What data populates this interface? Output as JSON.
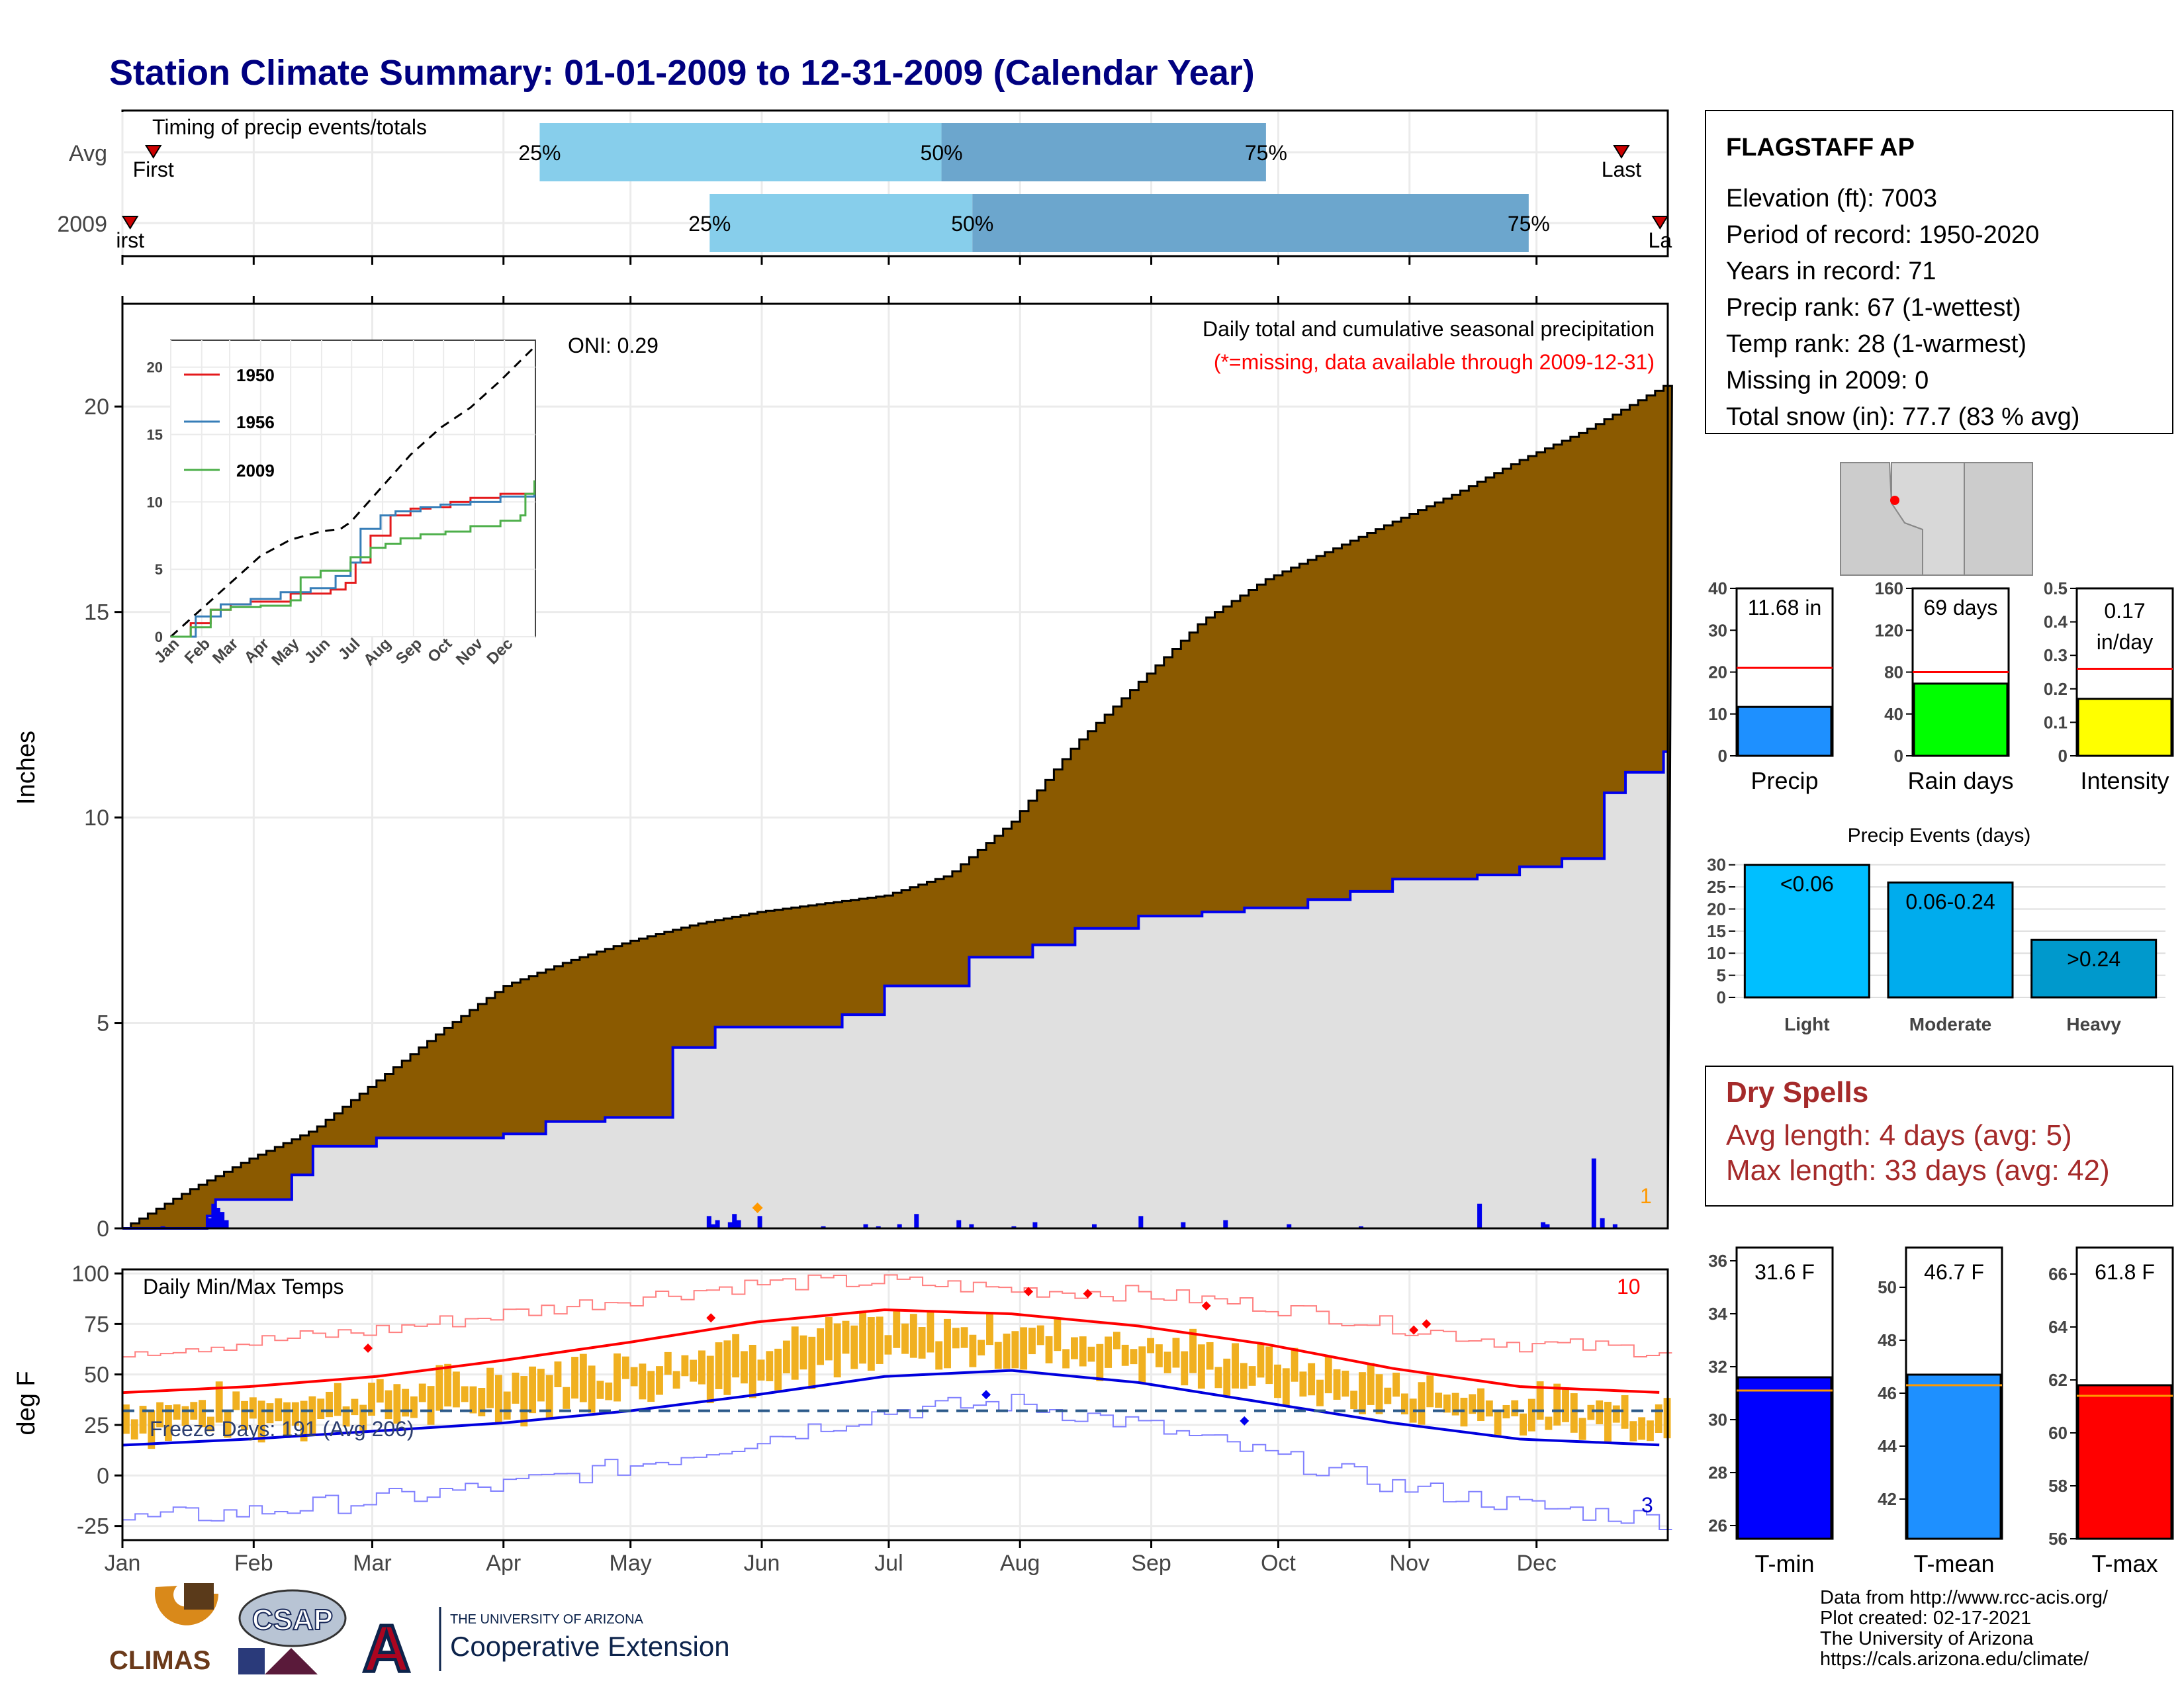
{
  "title": "Station Climate Summary: 01-01-2009 to 12-31-2009 (Calendar Year)",
  "months": [
    "Jan",
    "Feb",
    "Mar",
    "Apr",
    "May",
    "Jun",
    "Jul",
    "Aug",
    "Sep",
    "Oct",
    "Nov",
    "Dec"
  ],
  "timing": {
    "label": "Timing of precip events/totals",
    "rows": [
      {
        "name": "Avg",
        "q25": 0.27,
        "q50": 0.53,
        "q75": 0.74,
        "first": 0.02,
        "last": 0.97,
        "first_label": "First",
        "last_label": "Last"
      },
      {
        "name": "2009",
        "q25": 0.38,
        "q50": 0.55,
        "q75": 0.91,
        "first": 0.005,
        "last": 0.995,
        "first_label": "irst",
        "last_label": "La"
      }
    ],
    "pct_labels": [
      "25%",
      "50%",
      "75%"
    ],
    "colors": {
      "light": "#87ceeb",
      "dark": "#6ca6cd",
      "marker": "#cc0000"
    }
  },
  "precip": {
    "ylabel": "Inches",
    "y_ticks": [
      0,
      5,
      10,
      15,
      20
    ],
    "ylim": [
      0,
      22.5
    ],
    "oni": "ONI: 0.29",
    "note1": "Daily total and cumulative seasonal precipitation",
    "note2": "(*=missing, data available through 2009-12-31)",
    "count_label": "1",
    "colors": {
      "avg_fill": "#8b5a00",
      "year_fill": "#e0e0e0",
      "year_line": "#0000ee"
    },
    "chart_data": {
      "type": "area",
      "x_unit": "day of year",
      "avg_cumulative": {
        "x": [
          0,
          15,
          30,
          45,
          60,
          75,
          90,
          105,
          120,
          135,
          150,
          165,
          180,
          195,
          210,
          225,
          240,
          255,
          270,
          285,
          300,
          315,
          330,
          345,
          364
        ],
        "y": [
          0,
          0.9,
          1.7,
          2.4,
          3.6,
          4.8,
          5.9,
          6.5,
          7.0,
          7.4,
          7.7,
          7.9,
          8.1,
          8.6,
          9.9,
          11.8,
          13.3,
          14.8,
          15.8,
          16.5,
          17.2,
          17.9,
          18.7,
          19.4,
          20.5
        ]
      },
      "year_cumulative": {
        "x": [
          0,
          20,
          22,
          38,
          40,
          45,
          60,
          75,
          90,
          100,
          114,
          125,
          130,
          140,
          145,
          155,
          170,
          180,
          190,
          200,
          215,
          225,
          240,
          255,
          265,
          280,
          290,
          300,
          320,
          330,
          340,
          350,
          355,
          364
        ],
        "y": [
          0,
          0.3,
          0.7,
          0.7,
          1.3,
          2.0,
          2.2,
          2.2,
          2.3,
          2.6,
          2.7,
          2.7,
          4.4,
          4.9,
          4.9,
          4.9,
          5.2,
          5.9,
          5.9,
          6.6,
          6.9,
          7.3,
          7.6,
          7.7,
          7.8,
          8.0,
          8.2,
          8.5,
          8.6,
          8.8,
          9.0,
          10.6,
          11.1,
          11.6
        ]
      },
      "daily_bars": {
        "x": [
          9,
          20,
          21,
          22,
          23,
          24,
          138,
          139,
          140,
          143,
          144,
          145,
          150,
          165,
          175,
          178,
          183,
          187,
          197,
          200,
          210,
          215,
          229,
          240,
          250,
          260,
          275,
          292,
          320,
          335,
          336,
          347,
          349,
          352
        ],
        "y": [
          0.05,
          0.25,
          0.6,
          0.5,
          0.4,
          0.2,
          0.3,
          0.1,
          0.2,
          0.15,
          0.35,
          0.2,
          0.3,
          0.05,
          0.1,
          0.05,
          0.1,
          0.35,
          0.2,
          0.1,
          0.05,
          0.15,
          0.1,
          0.3,
          0.15,
          0.2,
          0.1,
          0.05,
          0.6,
          0.15,
          0.1,
          1.7,
          0.25,
          0.1
        ]
      }
    }
  },
  "inset": {
    "y_ticks": [
      0,
      5,
      10,
      15,
      20
    ],
    "legend": [
      {
        "name": "1950",
        "color": "#e41a1c"
      },
      {
        "name": "1956",
        "color": "#377eb8"
      },
      {
        "name": "2009",
        "color": "#4daf4a"
      }
    ],
    "chart_data": {
      "type": "line",
      "avg": {
        "x": [
          0,
          30,
          60,
          90,
          120,
          150,
          170,
          180,
          210,
          240,
          270,
          300,
          330,
          364
        ],
        "y": [
          0,
          2,
          4,
          6,
          7.2,
          7.8,
          8,
          8.5,
          11,
          13.5,
          15.5,
          17,
          19,
          21.5
        ]
      },
      "s1950": {
        "x": [
          0,
          20,
          40,
          60,
          80,
          120,
          160,
          175,
          185,
          200,
          220,
          240,
          260,
          280,
          300,
          330,
          364
        ],
        "y": [
          0,
          1,
          2,
          2.4,
          2.6,
          3.2,
          3.5,
          4,
          5.5,
          7.5,
          9,
          9.5,
          9.6,
          10,
          10.3,
          10.6,
          10.6
        ]
      },
      "s1956": {
        "x": [
          0,
          25,
          50,
          80,
          110,
          140,
          165,
          180,
          190,
          210,
          225,
          250,
          270,
          300,
          330,
          364
        ],
        "y": [
          0,
          1.5,
          2.4,
          2.8,
          3.3,
          3.6,
          4.5,
          5.5,
          8,
          9,
          9.3,
          9.6,
          9.8,
          10,
          10.4,
          10.7
        ]
      },
      "s2009": {
        "x": [
          0,
          20,
          40,
          60,
          90,
          120,
          130,
          150,
          180,
          200,
          215,
          230,
          250,
          275,
          300,
          330,
          350,
          355,
          364
        ],
        "y": [
          0,
          0.7,
          2,
          2.2,
          2.3,
          2.7,
          4.4,
          4.9,
          5.9,
          6.6,
          6.9,
          7.3,
          7.6,
          7.8,
          8.2,
          8.6,
          9,
          10.6,
          11.6
        ]
      }
    }
  },
  "temps": {
    "ylabel": "deg F",
    "label": "Daily Min/Max Temps",
    "freeze": "Freeze Days: 191 (Avg 206)",
    "count_hi": "10",
    "count_lo": "3",
    "y_ticks": [
      -25,
      0,
      25,
      50,
      75,
      100
    ],
    "ylim": [
      -32,
      102
    ],
    "freeze_line": 32,
    "colors": {
      "bars": "#f0b020",
      "avg_max": "#ff0000",
      "avg_min": "#0000dd",
      "rec_max": "#ff8080",
      "rec_min": "#8080ff",
      "freeze": "#2c5a8a"
    },
    "chart_data": {
      "type": "bar",
      "avg_max": {
        "x": [
          0,
          30,
          60,
          90,
          120,
          150,
          180,
          210,
          240,
          270,
          300,
          330,
          364
        ],
        "y": [
          41,
          44,
          49,
          57,
          66,
          76,
          82,
          80,
          74,
          65,
          53,
          44,
          41
        ]
      },
      "avg_min": {
        "x": [
          0,
          30,
          60,
          90,
          120,
          150,
          180,
          210,
          240,
          270,
          300,
          330,
          364
        ],
        "y": [
          15,
          18,
          22,
          26,
          32,
          40,
          49,
          52,
          46,
          36,
          26,
          18,
          15
        ]
      },
      "rec_max": {
        "x": [
          0,
          30,
          60,
          90,
          120,
          150,
          180,
          210,
          240,
          270,
          300,
          330,
          364
        ],
        "y": [
          62,
          66,
          72,
          80,
          88,
          95,
          96,
          92,
          90,
          84,
          74,
          65,
          62
        ]
      },
      "rec_min": {
        "x": [
          0,
          30,
          60,
          90,
          120,
          150,
          180,
          210,
          240,
          270,
          300,
          330,
          364
        ],
        "y": [
          -22,
          -18,
          -12,
          -5,
          5,
          18,
          32,
          36,
          25,
          10,
          -5,
          -15,
          -22
        ]
      }
    }
  },
  "station": {
    "name": "FLAGSTAFF AP",
    "lines": [
      "Elevation (ft): 7003",
      "Period of record: 1950-2020",
      "Years in record: 71",
      "Precip rank: 67 (1-wettest)",
      "Temp rank: 28 (1-warmest)",
      "Missing in 2009: 0",
      "Total snow (in): 77.7 (83 % avg)"
    ]
  },
  "mini_bars": [
    {
      "label": "Precip",
      "value_label": "11.68 in",
      "value": 11.68,
      "avg": 21,
      "ylim": [
        0,
        40
      ],
      "ticks": [
        0,
        10,
        20,
        30,
        40
      ],
      "color": "#1e90ff"
    },
    {
      "label": "Rain days",
      "value_label": "69 days",
      "value": 69,
      "avg": 80,
      "ylim": [
        0,
        160
      ],
      "ticks": [
        0,
        40,
        80,
        120,
        160
      ],
      "color": "#00ff00"
    },
    {
      "label": "Intensity",
      "value_label": "0.17",
      "value_label2": "in/day",
      "value": 0.17,
      "avg": 0.26,
      "ylim": [
        0,
        0.5
      ],
      "ticks": [
        0.0,
        0.1,
        0.2,
        0.3,
        0.4,
        0.5
      ],
      "color": "#ffff00"
    }
  ],
  "events": {
    "title": "Precip Events (days)",
    "ticks": [
      0,
      5,
      10,
      15,
      20,
      25,
      30
    ],
    "ylim": [
      0,
      31
    ],
    "chart_data": {
      "type": "bar",
      "categories": [
        "Light",
        "Moderate",
        "Heavy"
      ],
      "values": [
        30,
        26,
        13
      ],
      "bar_labels": [
        "<0.06",
        "0.06-0.24",
        ">0.24"
      ],
      "colors": [
        "#00bfff",
        "#00aced",
        "#0099cc"
      ]
    }
  },
  "dry": {
    "title": "Dry Spells",
    "avg": "Avg length: 4 days (avg: 5)",
    "max": "Max length: 33 days (avg: 42)",
    "color": "#a52a2a"
  },
  "temp_bars": [
    {
      "label": "T-min",
      "value_label": "31.6 F",
      "value": 31.6,
      "avg": 31.1,
      "ylim": [
        25.5,
        36.5
      ],
      "ticks": [
        26,
        28,
        30,
        32,
        34,
        36
      ],
      "color": "#0000ff"
    },
    {
      "label": "T-mean",
      "value_label": "46.7 F",
      "value": 46.7,
      "avg": 46.3,
      "ylim": [
        40.5,
        51.5
      ],
      "ticks": [
        42,
        44,
        46,
        48,
        50
      ],
      "color": "#1e90ff"
    },
    {
      "label": "T-max",
      "value_label": "61.8 F",
      "value": 61.8,
      "avg": 61.4,
      "ylim": [
        56,
        67
      ],
      "ticks": [
        56,
        58,
        60,
        62,
        64,
        66
      ],
      "color": "#ff0000"
    }
  ],
  "credits": [
    "Data from http://www.rcc-acis.org/",
    "Plot created: 02-17-2021",
    "The University of Arizona",
    "https://cals.arizona.edu/climate/"
  ],
  "logos": {
    "climas": "CLIMAS",
    "csap": "CSAP",
    "ua_small": "THE UNIVERSITY OF ARIZONA",
    "ua_big": "Cooperative Extension"
  }
}
